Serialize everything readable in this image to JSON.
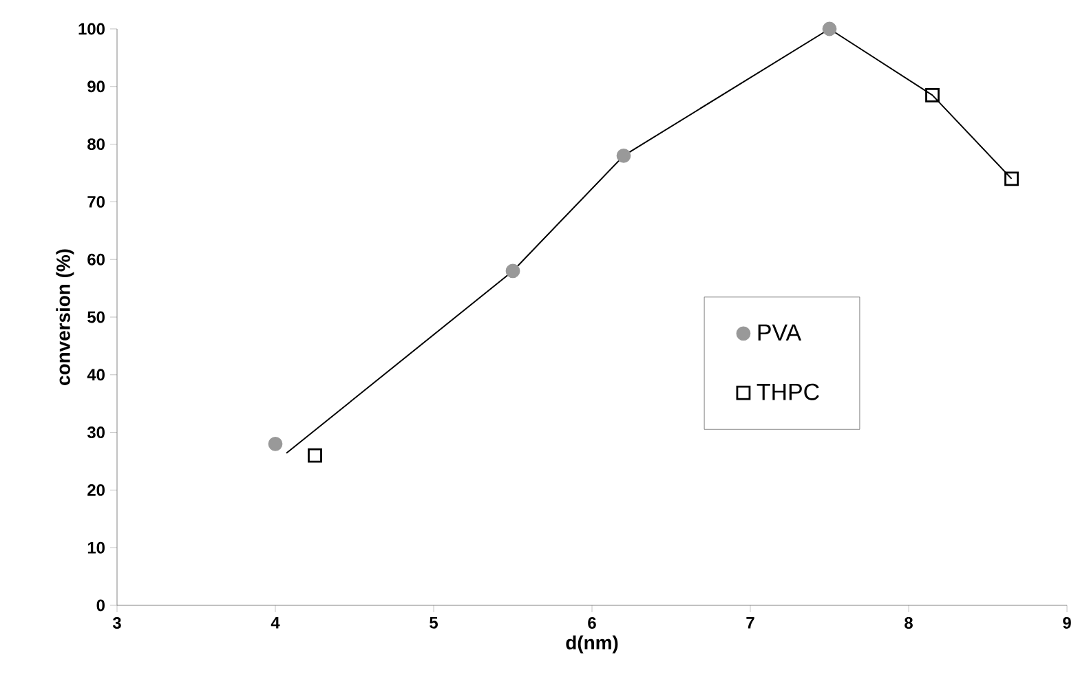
{
  "chart_data": {
    "type": "scatter",
    "xlabel": "d(nm)",
    "ylabel": "conversion (%)",
    "xlim": [
      3,
      9
    ],
    "xticks": [
      3,
      4,
      5,
      6,
      7,
      8,
      9
    ],
    "ylim": [
      0,
      100
    ],
    "yticks": [
      0,
      10,
      20,
      30,
      40,
      50,
      60,
      70,
      80,
      90,
      100
    ],
    "grid": false,
    "legend": "center right",
    "series": [
      {
        "type": "line",
        "color": "#000000",
        "marker": "none",
        "line_style": "solid",
        "x": [
          4.07,
          5.5,
          6.2,
          7.5,
          8.15,
          8.65
        ],
        "values": [
          26.4,
          58,
          78,
          100,
          88.5,
          74
        ]
      },
      {
        "name": "PVA",
        "color": "#999999",
        "marker": "circle",
        "x": [
          4,
          5.5,
          6.2,
          7.5
        ],
        "values": [
          28,
          58,
          78,
          100
        ]
      },
      {
        "name": "THPC",
        "color": "#000000",
        "marker": "square",
        "x": [
          4.25,
          8.15,
          8.65
        ],
        "values": [
          26,
          88.5,
          74
        ]
      }
    ]
  }
}
